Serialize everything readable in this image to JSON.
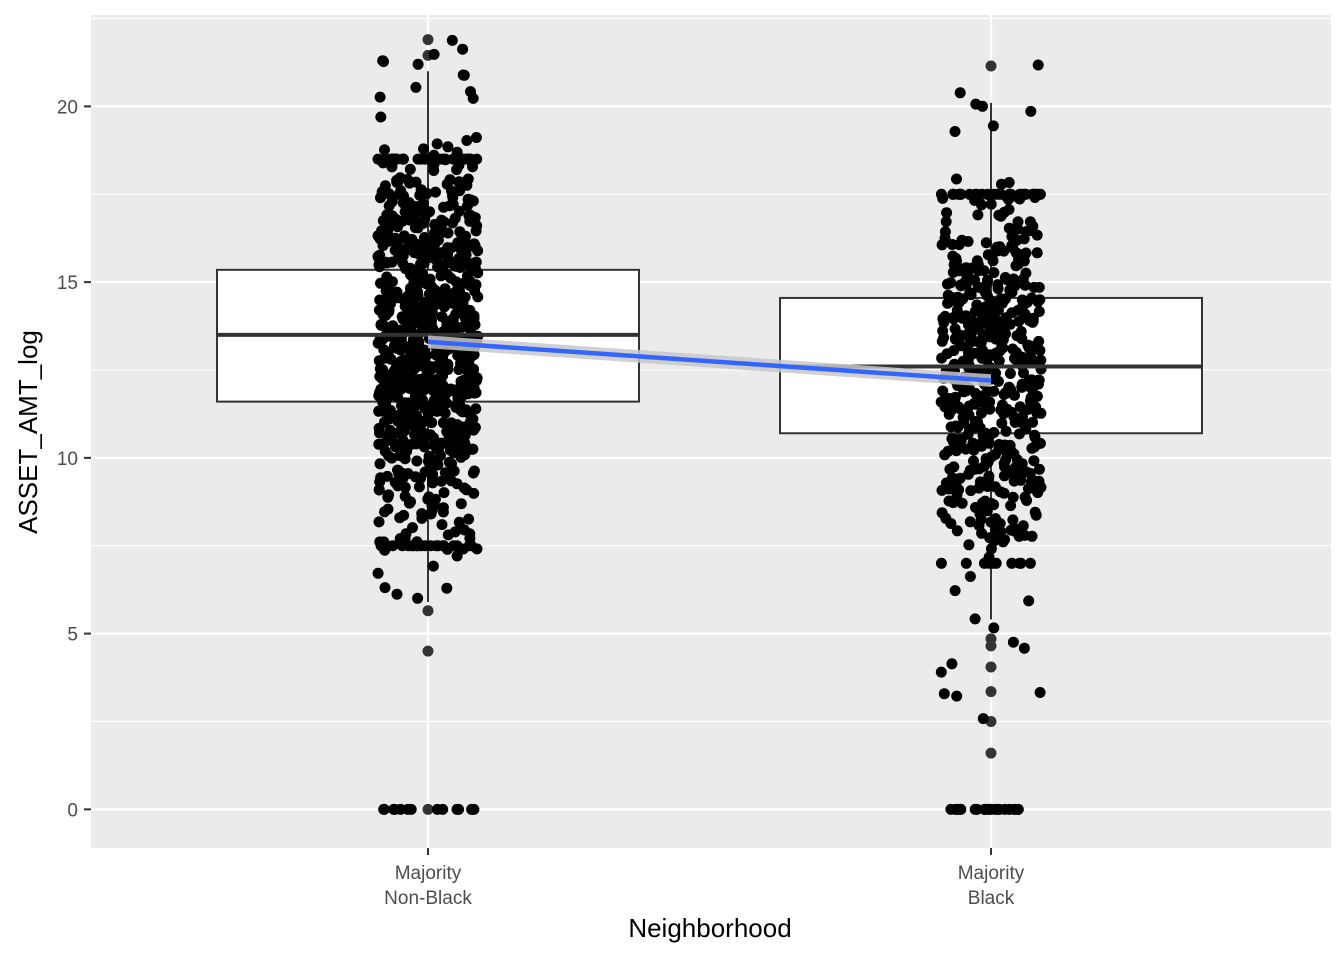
{
  "chart_data": {
    "type": "box",
    "xlabel": "Neighborhood",
    "ylabel": "ASSET_AMT_log",
    "ylim": [
      -1.1,
      22.6
    ],
    "yticks": [
      0,
      5,
      10,
      15,
      20
    ],
    "grid": true,
    "legend": "none",
    "colors": {
      "panel": "#ebebeb",
      "grid": "#ffffff",
      "box_fill": "#ffffff",
      "box_line": "#333333",
      "point": "#000000",
      "trend": "#3366ff",
      "ribbon": "#c8c8c8"
    },
    "categories": [
      {
        "label_lines": [
          "Majority",
          "Non-Black"
        ],
        "box": {
          "q1": 11.6,
          "median": 13.5,
          "q3": 15.35,
          "whisker_low": 5.9,
          "whisker_high": 21.0
        },
        "outliers": [
          0,
          4.5,
          5.65,
          21.45,
          21.9
        ],
        "jitter_summary": {
          "n_zero": 14,
          "dense_low": 7.5,
          "dense_high": 18.5,
          "sparse_low": 5.6,
          "sparse_high": 21.9
        }
      },
      {
        "label_lines": [
          "Majority",
          "Black"
        ],
        "box": {
          "q1": 10.7,
          "median": 12.6,
          "q3": 14.55,
          "whisker_low": 5.4,
          "whisker_high": 20.1
        },
        "outliers": [
          0,
          1.6,
          2.5,
          3.35,
          4.05,
          4.65,
          4.85,
          21.15
        ],
        "jitter_summary": {
          "n_zero": 22,
          "dense_low": 7.0,
          "dense_high": 17.5,
          "sparse_low": 1.6,
          "sparse_high": 21.2
        }
      }
    ],
    "trend_line": {
      "from": [
        1,
        13.3
      ],
      "to": [
        2,
        12.2
      ],
      "ribbon_halfwidth": 0.18
    }
  }
}
